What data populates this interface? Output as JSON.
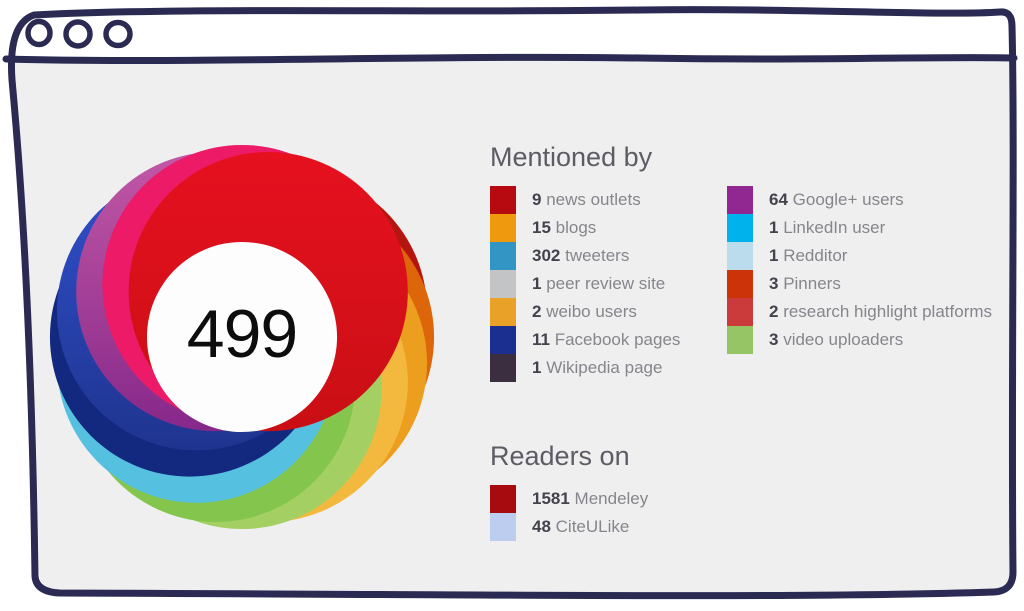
{
  "window": {
    "frame_color": "#2b2a52",
    "body_bg": "#f0eff0",
    "traffic_lights": [
      "window-circle-1",
      "window-circle-2",
      "window-circle-3"
    ]
  },
  "badge": {
    "score": "499"
  },
  "donut": {
    "center_color": "#fdfdfd",
    "petals": [
      {
        "name": "dark-red",
        "angle": 60,
        "color": "#b5150f"
      },
      {
        "name": "orange",
        "angle": 90,
        "color": "#dd660b"
      },
      {
        "name": "amber",
        "angle": 120,
        "color": "#ec9e1f"
      },
      {
        "name": "yellow",
        "angle": 150,
        "color": "#f3b93e"
      },
      {
        "name": "light-green",
        "angle": 180,
        "color": "#a4d063"
      },
      {
        "name": "green",
        "angle": 210,
        "color": "#84c64d"
      },
      {
        "name": "cyan",
        "angle": 240,
        "color": "#55c0e0"
      },
      {
        "name": "navy",
        "angle": 270,
        "color": "#13297f"
      },
      {
        "name": "royal-blue",
        "angle": 300,
        "color": "#3050cc",
        "color2": "#1f348f"
      },
      {
        "name": "violet",
        "angle": 330,
        "color": "#c258a6",
        "color2": "#86288a"
      },
      {
        "name": "pink",
        "angle": 0,
        "color": "#ec1a67"
      },
      {
        "name": "red",
        "angle": 30,
        "color": "#e6101f",
        "color2": "#c90f14"
      }
    ]
  },
  "mentioned_by": {
    "title": "Mentioned by",
    "columns": [
      [
        {
          "count": "9",
          "label": "news outlets",
          "color": "#b60a10"
        },
        {
          "count": "15",
          "label": "blogs",
          "color": "#ef9a0e"
        },
        {
          "count": "302",
          "label": "tweeters",
          "color": "#3295c4"
        },
        {
          "count": "1",
          "label": "peer review site",
          "color": "#c3c4c6"
        },
        {
          "count": "2",
          "label": "weibo users",
          "color": "#e9a227"
        },
        {
          "count": "11",
          "label": "Facebook pages",
          "color": "#1b2f91"
        },
        {
          "count": "1",
          "label": "Wikipedia page",
          "color": "#3a2e40"
        }
      ],
      [
        {
          "count": "64",
          "label": "Google+ users",
          "color": "#912790"
        },
        {
          "count": "1",
          "label": "LinkedIn user",
          "color": "#00b2eb"
        },
        {
          "count": "1",
          "label": "Redditor",
          "color": "#badcec"
        },
        {
          "count": "3",
          "label": "Pinners",
          "color": "#cc3308"
        },
        {
          "count": "2",
          "label": "research highlight platforms",
          "color": "#cc3b3b"
        },
        {
          "count": "3",
          "label": "video uploaders",
          "color": "#96c566"
        }
      ]
    ]
  },
  "readers_on": {
    "title": "Readers on",
    "items": [
      {
        "count": "1581",
        "label": "Mendeley",
        "color": "#a70b10"
      },
      {
        "count": "48",
        "label": "CiteULike",
        "color": "#bccdef"
      }
    ]
  },
  "chart_data": [
    {
      "type": "pie",
      "title": "Mentioned by",
      "center_label": "499",
      "categories": [
        "news outlets",
        "blogs",
        "tweeters",
        "peer review site",
        "weibo users",
        "Facebook pages",
        "Wikipedia page",
        "Google+ users",
        "LinkedIn user",
        "Redditor",
        "Pinners",
        "research highlight platforms",
        "video uploaders"
      ],
      "values": [
        9,
        15,
        302,
        1,
        2,
        11,
        1,
        64,
        1,
        1,
        3,
        2,
        3
      ],
      "colors": [
        "#b60a10",
        "#ef9a0e",
        "#3295c4",
        "#c3c4c6",
        "#e9a227",
        "#1b2f91",
        "#3a2e40",
        "#912790",
        "#00b2eb",
        "#badcec",
        "#cc3308",
        "#cc3b3b",
        "#96c566"
      ],
      "legend_position": "right"
    },
    {
      "type": "pie",
      "title": "Readers on",
      "categories": [
        "Mendeley",
        "CiteULike"
      ],
      "values": [
        1581,
        48
      ],
      "colors": [
        "#a70b10",
        "#bccdef"
      ],
      "legend_position": "right"
    }
  ]
}
